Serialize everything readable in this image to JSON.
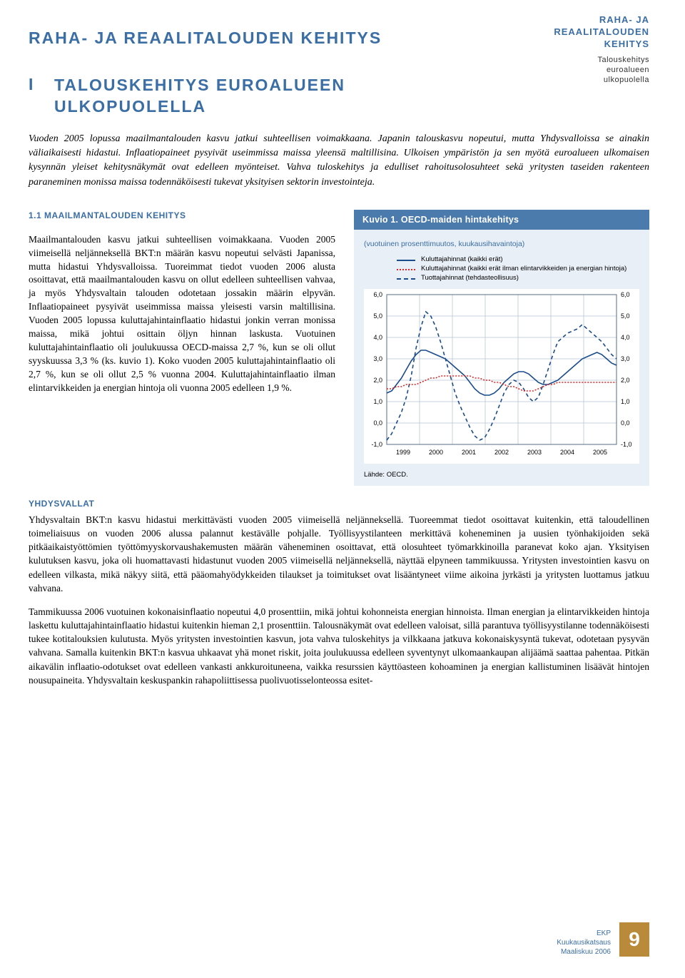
{
  "corner": {
    "line1": "RAHA- JA",
    "line2": "REAALITALOUDEN",
    "line3": "KEHITYS",
    "sub1": "Talouskehitys",
    "sub2": "euroalueen",
    "sub3": "ulkopuolella"
  },
  "main_title": "RAHA- JA REAALITALOUDEN KEHITYS",
  "section": {
    "num": "I",
    "title_l1": "TALOUSKEHITYS EUROALUEEN",
    "title_l2": "ULKOPUOLELLA"
  },
  "intro": "Vuoden 2005 lopussa maailmantalouden kasvu jatkui suhteellisen voimakkaana. Japanin talouskasvu nopeutui, mutta Yhdysvalloissa se ainakin väliaikaisesti hidastui. Inflaatiopaineet pysyivät useimmissa maissa yleensä maltillisina. Ulkoisen ympäristön ja sen myötä euroalueen ulkomaisen kysynnän yleiset kehitysnäkymät ovat edelleen myönteiset. Vahva tuloskehitys ja edulliset rahoitusolosuhteet sekä yritysten taseiden rakenteen paraneminen monissa maissa todennäköisesti tukevat yksityisen sektorin investointeja.",
  "subsection_title": "1.1 MAAILMANTALOUDEN KEHITYS",
  "left_body": "Maailmantalouden kasvu jatkui suhteellisen voimakkaana. Vuoden 2005 viimeisellä neljänneksellä BKT:n määrän kasvu nopeutui selvästi Japanissa, mutta hidastui Yhdysvalloissa. Tuoreimmat tiedot vuoden 2006 alusta osoittavat, että maailmantalouden kasvu on ollut edelleen suhteellisen vahvaa, ja myös Yhdysvaltain talouden odotetaan jossakin määrin elpyvän. Inflaatiopaineet pysyivät useimmissa maissa yleisesti varsin maltillisina. Vuoden 2005 lopussa kuluttajahintainflaatio hidastui jonkin verran monissa maissa, mikä johtui osittain öljyn hinnan laskusta. Vuotuinen kuluttajahintainflaatio oli joulukuussa OECD-maissa 2,7 %, kun se oli ollut syyskuussa 3,3 % (ks. kuvio 1). Koko vuoden 2005 kuluttajahintainflaatio oli 2,7 %, kun se oli ollut 2,5 % vuonna 2004. Kuluttajahintainflaatio ilman elintarvikkeiden ja energian hintoja oli vuonna 2005 edelleen 1,9 %.",
  "chart": {
    "title": "Kuvio 1. OECD-maiden hintakehitys",
    "subtitle": "(vuotuinen prosenttimuutos, kuukausihavaintoja)",
    "legend": [
      {
        "label": "Kuluttajahinnat (kaikki erät)",
        "color": "#1a4c8b",
        "dash": "solid"
      },
      {
        "label": "Kuluttajahinnat (kaikki erät ilman elintarvikkeiden ja energian hintoja)",
        "color": "#d62828",
        "dash": "dotted"
      },
      {
        "label": "Tuottajahinnat (tehdasteollisuus)",
        "color": "#1a4c8b",
        "dash": "dashed"
      }
    ],
    "ylim": [
      -1,
      6
    ],
    "ytick_step": 1,
    "years": [
      "1999",
      "2000",
      "2001",
      "2002",
      "2003",
      "2004",
      "2005"
    ],
    "background_color": "#ffffff",
    "grid_color": "#b8c5d6",
    "box_bg": "#e9eff6",
    "title_bg": "#4b7aad",
    "series": {
      "cpi_all": {
        "color": "#1a4c8b",
        "dash": "0",
        "values": [
          1.4,
          1.5,
          1.8,
          2.1,
          2.5,
          2.9,
          3.2,
          3.4,
          3.4,
          3.3,
          3.2,
          3.1,
          3.0,
          2.8,
          2.6,
          2.4,
          2.2,
          1.9,
          1.6,
          1.4,
          1.3,
          1.3,
          1.4,
          1.6,
          1.9,
          2.1,
          2.3,
          2.4,
          2.4,
          2.3,
          2.1,
          1.9,
          1.8,
          1.8,
          1.9,
          2.0,
          2.2,
          2.4,
          2.6,
          2.8,
          3.0,
          3.1,
          3.2,
          3.3,
          3.2,
          3.0,
          2.8,
          2.7
        ]
      },
      "cpi_core": {
        "color": "#d62828",
        "dash": "2 2",
        "values": [
          1.6,
          1.6,
          1.7,
          1.7,
          1.8,
          1.8,
          1.8,
          1.9,
          2.0,
          2.1,
          2.1,
          2.2,
          2.2,
          2.2,
          2.2,
          2.2,
          2.2,
          2.2,
          2.1,
          2.1,
          2.0,
          2.0,
          1.9,
          1.9,
          1.8,
          1.7,
          1.7,
          1.6,
          1.5,
          1.5,
          1.5,
          1.6,
          1.7,
          1.8,
          1.8,
          1.9,
          1.9,
          1.9,
          1.9,
          1.9,
          1.9,
          1.9,
          1.9,
          1.9,
          1.9,
          1.9,
          1.9,
          1.9
        ]
      },
      "ppi": {
        "color": "#1a4c8b",
        "dash": "5 4",
        "values": [
          -0.8,
          -0.5,
          0.0,
          0.5,
          1.2,
          2.2,
          3.5,
          4.5,
          5.2,
          5.0,
          4.5,
          3.8,
          3.0,
          2.2,
          1.4,
          0.8,
          0.3,
          -0.2,
          -0.6,
          -0.8,
          -0.7,
          -0.3,
          0.2,
          0.8,
          1.4,
          1.8,
          2.0,
          1.9,
          1.6,
          1.2,
          1.0,
          1.2,
          1.8,
          2.5,
          3.2,
          3.8,
          4.0,
          4.2,
          4.3,
          4.4,
          4.6,
          4.4,
          4.2,
          4.0,
          3.8,
          3.5,
          3.2,
          3.0
        ]
      }
    },
    "source": "Lähde: OECD."
  },
  "country_heading": "YHDYSVALLAT",
  "para1": "Yhdysvaltain BKT:n kasvu hidastui merkittävästi vuoden 2005 viimeisellä neljänneksellä. Tuoreemmat tiedot osoittavat kuitenkin, että taloudellinen toimeliaisuus on vuoden 2006 alussa palannut kestävälle pohjalle. Työllisyystilanteen merkittävä koheneminen ja uusien työnhakijoiden sekä pitkäaikaistyöttömien työttömyyskorvaushakemusten määrän väheneminen osoittavat, että olosuhteet työmarkkinoilla paranevat koko ajan. Yksityisen kulutuksen kasvu, joka oli huomattavasti hidastunut vuoden 2005 viimeisellä neljänneksellä, näyttää elpyneen tammikuussa. Yritysten investointien kasvu on edelleen vilkasta, mikä näkyy siitä, että pääomahyödykkeiden tilaukset ja toimitukset ovat lisääntyneet viime aikoina jyrkästi ja yritysten luottamus jatkuu vahvana.",
  "para2": "Tammikuussa 2006 vuotuinen kokonaisinflaatio nopeutui 4,0 prosenttiin, mikä johtui kohonneista energian hinnoista. Ilman energian ja elintarvikkeiden hintoja laskettu kuluttajahintainflaatio hidastui kuitenkin hieman 2,1 prosenttiin. Talousnäkymät ovat edelleen valoisat, sillä parantuva työllisyystilanne todennäköisesti tukee kotitalouksien kulutusta. Myös yritysten investointien kasvun, jota vahva tuloskehitys ja vilkkaana jatkuva kokonaiskysyntä tukevat, odotetaan pysyvän vahvana. Samalla kuitenkin BKT:n kasvua uhkaavat yhä monet riskit, joita joulukuussa edelleen syventynyt ulkomaankaupan alijäämä saattaa pahentaa. Pitkän aikavälin inflaatio-odotukset ovat edelleen vankasti ankkuroituneena, vaikka resurssien käyttöasteen kohoaminen ja energian kallistuminen lisäävät hintojen nousupaineita. Yhdysvaltain keskuspankin rahapoliittisessa puolivuotisselonteossa esitet-",
  "footer": {
    "l1": "EKP",
    "l2": "Kuukausikatsaus",
    "l3": "Maaliskuu 2006",
    "num": "9"
  }
}
